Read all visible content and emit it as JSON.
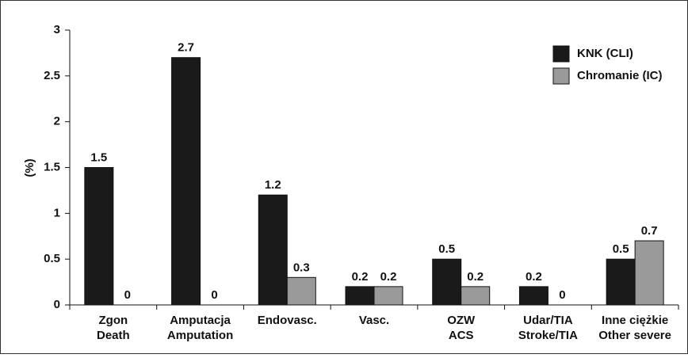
{
  "chart_data": {
    "type": "bar",
    "y_label": "(%)",
    "categories": [
      [
        "Zgon",
        "Death"
      ],
      [
        "Amputacja",
        "Amputation"
      ],
      [
        "Endovasc."
      ],
      [
        "Vasc."
      ],
      [
        "OZW",
        "ACS"
      ],
      [
        "Udar/TIA",
        "Stroke/TIA"
      ],
      [
        "Inne ciężkie",
        "Other severe"
      ]
    ],
    "series": [
      {
        "name": "KNK (CLI)",
        "color": "#1a1a1a",
        "values": [
          1.5,
          2.7,
          1.2,
          0.2,
          0.5,
          0.2,
          0.5
        ]
      },
      {
        "name": "Chromanie (IC)",
        "color": "#9a9a9a",
        "values": [
          0,
          0,
          0.3,
          0.2,
          0.2,
          0,
          0.7
        ]
      }
    ],
    "ylim": [
      0,
      3
    ],
    "yticks": [
      0,
      0.5,
      1,
      1.5,
      2,
      2.5,
      3
    ]
  }
}
